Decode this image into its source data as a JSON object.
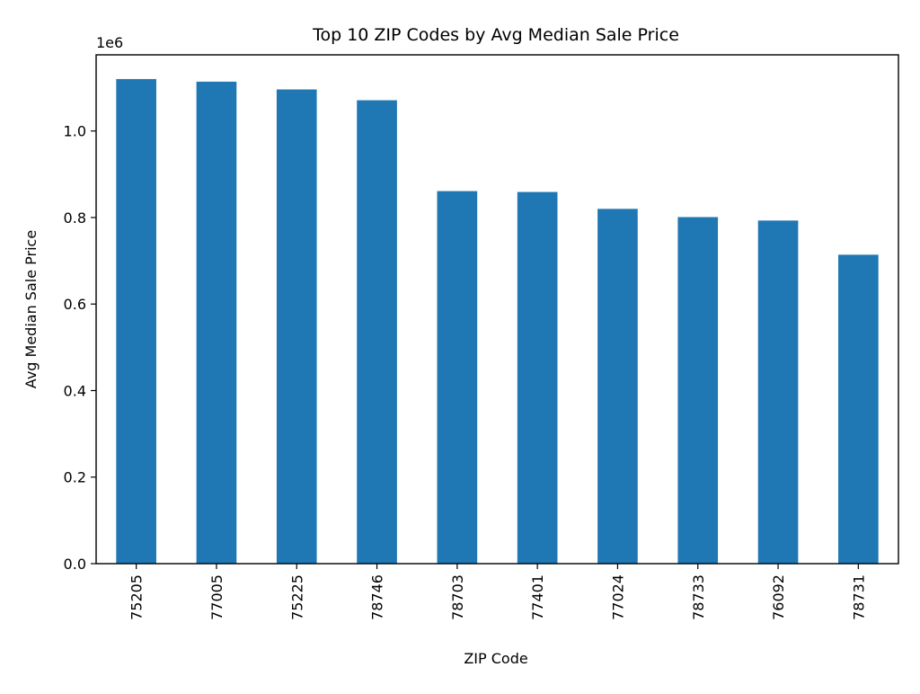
{
  "chart_data": {
    "type": "bar",
    "title": "Top 10 ZIP Codes by Avg Median Sale Price",
    "xlabel": "ZIP Code",
    "ylabel": "Avg Median Sale Price",
    "y_offset_label": "1e6",
    "categories": [
      "75205",
      "77005",
      "75225",
      "78746",
      "78703",
      "77401",
      "77024",
      "78733",
      "76092",
      "78731"
    ],
    "values": [
      1120000,
      1114000,
      1096000,
      1071000,
      861000,
      859000,
      820000,
      801000,
      793000,
      714000
    ],
    "ylim": [
      0,
      1176000
    ],
    "y_ticks": [
      0,
      200000,
      400000,
      600000,
      800000,
      1000000
    ],
    "y_tick_labels": [
      "0.0",
      "0.2",
      "0.4",
      "0.6",
      "0.8",
      "1.0"
    ],
    "bar_color": "#1f77b4",
    "grid": false,
    "legend": "none"
  }
}
